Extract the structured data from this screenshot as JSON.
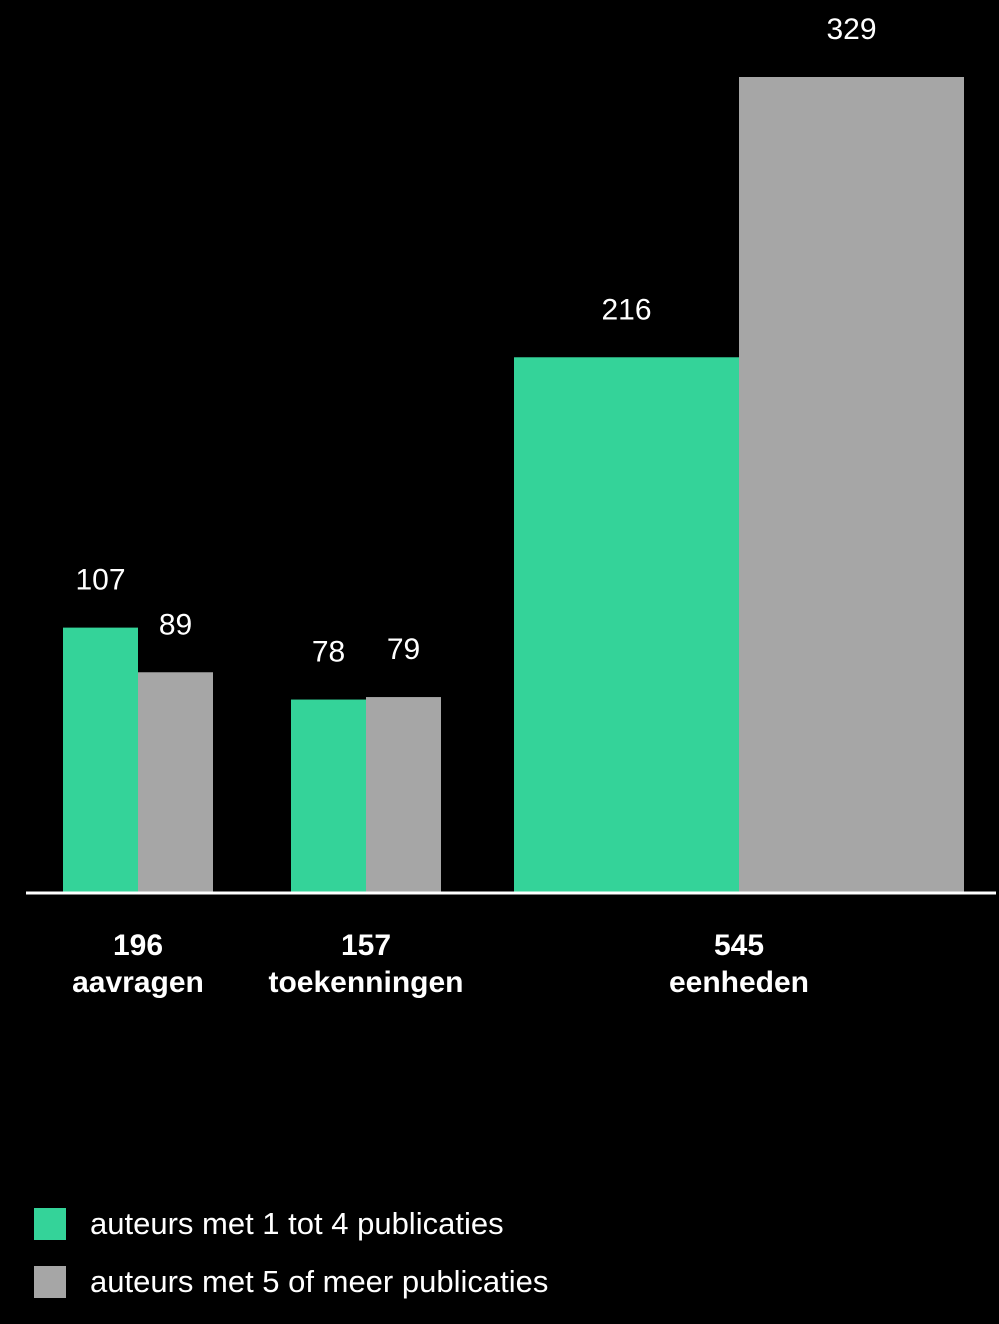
{
  "chart_data": {
    "type": "bar",
    "categories": [
      {
        "total": "196",
        "label": "aavragen"
      },
      {
        "total": "157",
        "label": "toekenningen"
      },
      {
        "total": "545",
        "label": "eenheden"
      }
    ],
    "series": [
      {
        "name": "auteurs met 1 tot 4 publicaties",
        "color": "#34d399",
        "values": [
          107,
          78,
          216
        ]
      },
      {
        "name": "auteurs met 5 of meer publicaties",
        "color": "#a6a6a6",
        "values": [
          89,
          79,
          329
        ]
      }
    ],
    "legend_position": "bottom-left",
    "grid": false
  }
}
